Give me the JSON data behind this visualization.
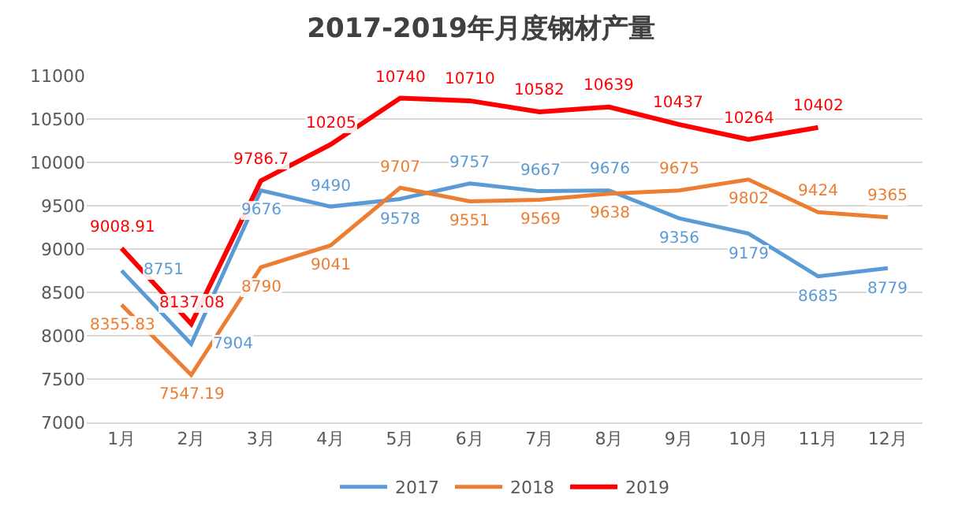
{
  "chart_data": {
    "type": "line",
    "title": "2017-2019年月度钢材产量",
    "categories": [
      "1月",
      "2月",
      "3月",
      "4月",
      "5月",
      "6月",
      "7月",
      "8月",
      "9月",
      "10月",
      "11月",
      "12月"
    ],
    "series": [
      {
        "name": "2017",
        "color": "#5b9bd5",
        "values": [
          8751,
          7904,
          9676,
          9490,
          9578,
          9757,
          9667,
          9676,
          9356,
          9179,
          8685,
          8779
        ],
        "value_labels": [
          "8751",
          "7904",
          "9676",
          "9490",
          "9578",
          "9757",
          "9667",
          "9676",
          "9356",
          "9179",
          "8685",
          "8779"
        ]
      },
      {
        "name": "2018",
        "color": "#ed7d31",
        "values": [
          8355.83,
          7547.19,
          8790,
          9041,
          9707,
          9551,
          9569,
          9638,
          9675,
          9802,
          9424,
          9365
        ],
        "value_labels": [
          "8355.83",
          "7547.19",
          "8790",
          "9041",
          "9707",
          "9551",
          "9569",
          "9638",
          "9675",
          "9802",
          "9424",
          "9365"
        ]
      },
      {
        "name": "2019",
        "color": "#ff0000",
        "values": [
          9008.91,
          8137.08,
          9786.7,
          10205,
          10740,
          10710,
          10582,
          10639,
          10437,
          10264,
          10402,
          null
        ],
        "value_labels": [
          "9008.91",
          "8137.08",
          "9786.7",
          "10205",
          "10740",
          "10710",
          "10582",
          "10639",
          "10437",
          "10264",
          "10402",
          null
        ]
      }
    ],
    "ylim": [
      7000,
      11000
    ],
    "yticks": [
      7000,
      7500,
      8000,
      8500,
      9000,
      9500,
      10000,
      10500,
      11000
    ],
    "grid": "y",
    "legend": "bottom",
    "marker": "none",
    "line_style": "solid"
  }
}
